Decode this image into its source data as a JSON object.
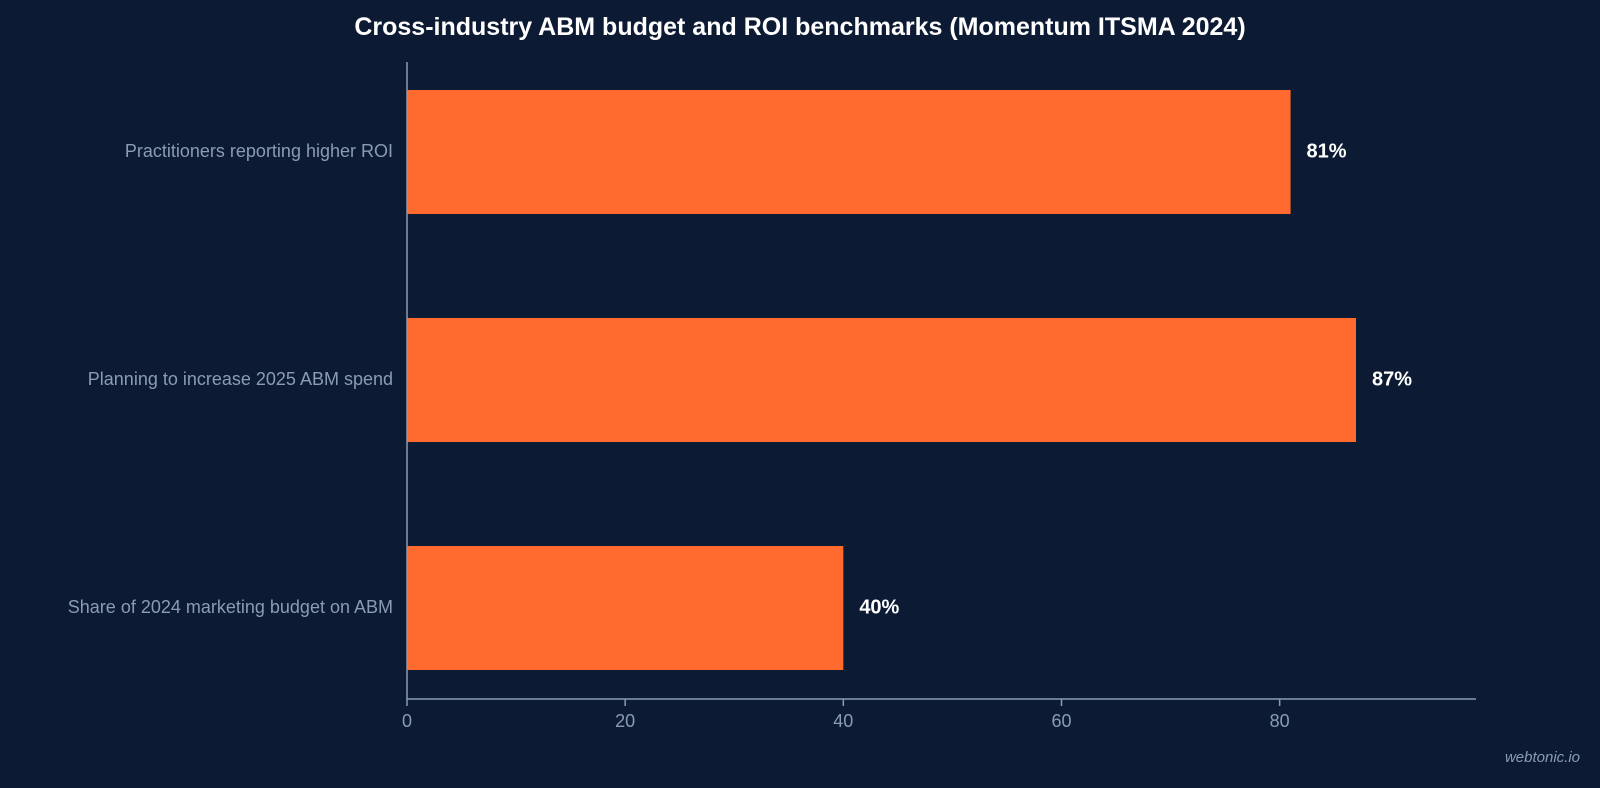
{
  "chart_data": {
    "type": "bar",
    "orientation": "horizontal",
    "title": "Cross-industry ABM budget and ROI benchmarks (Momentum ITSMA 2024)",
    "categories": [
      "Practitioners reporting higher ROI",
      "Planning to increase 2025 ABM spend",
      "Share of 2024 marketing budget on ABM"
    ],
    "values": [
      81,
      87,
      40
    ],
    "data_labels": [
      "81%",
      "87%",
      "40%"
    ],
    "xlabel": "",
    "ylabel": "",
    "xlim": [
      0,
      98
    ],
    "x_ticks": [
      0,
      20,
      40,
      60,
      80
    ],
    "x_tick_labels": [
      "0",
      "20",
      "40",
      "60",
      "80"
    ],
    "grid": false,
    "legend": "none"
  },
  "colors": {
    "background": "#0c1b33",
    "bar": "#ff6b2e",
    "axis": "#8a9bb4",
    "tick_label": "#8a9bb4",
    "data_label": "#ffffff",
    "title": "#ffffff"
  },
  "credit": "webtonic.io"
}
